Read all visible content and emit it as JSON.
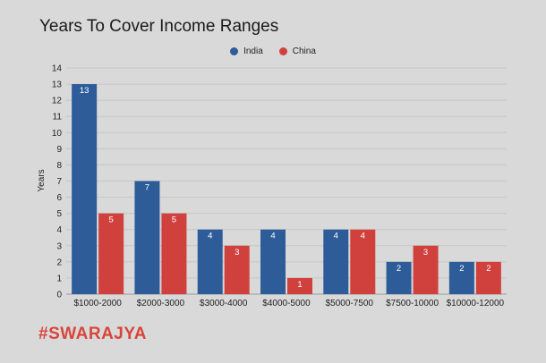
{
  "chart_data": {
    "type": "bar",
    "title": "Years To Cover Income Ranges",
    "xlabel": "",
    "ylabel": "Years",
    "ylim": [
      0,
      14
    ],
    "yticks": [
      0,
      1,
      2,
      3,
      4,
      5,
      6,
      7,
      8,
      9,
      10,
      11,
      12,
      13,
      14
    ],
    "grid": true,
    "legend_position": "top-center",
    "categories": [
      "$1000-2000",
      "$2000-3000",
      "$3000-4000",
      "$4000-5000",
      "$5000-7500",
      "$7500-10000",
      "$10000-12000"
    ],
    "series": [
      {
        "name": "India",
        "color": "#2e5c99",
        "values": [
          13,
          7,
          4,
          4,
          4,
          2,
          2
        ]
      },
      {
        "name": "China",
        "color": "#d0413e",
        "values": [
          5,
          5,
          3,
          1,
          4,
          3,
          2
        ]
      }
    ]
  },
  "brand": {
    "text": "#SWARAJYA",
    "color": "#d8453b"
  }
}
